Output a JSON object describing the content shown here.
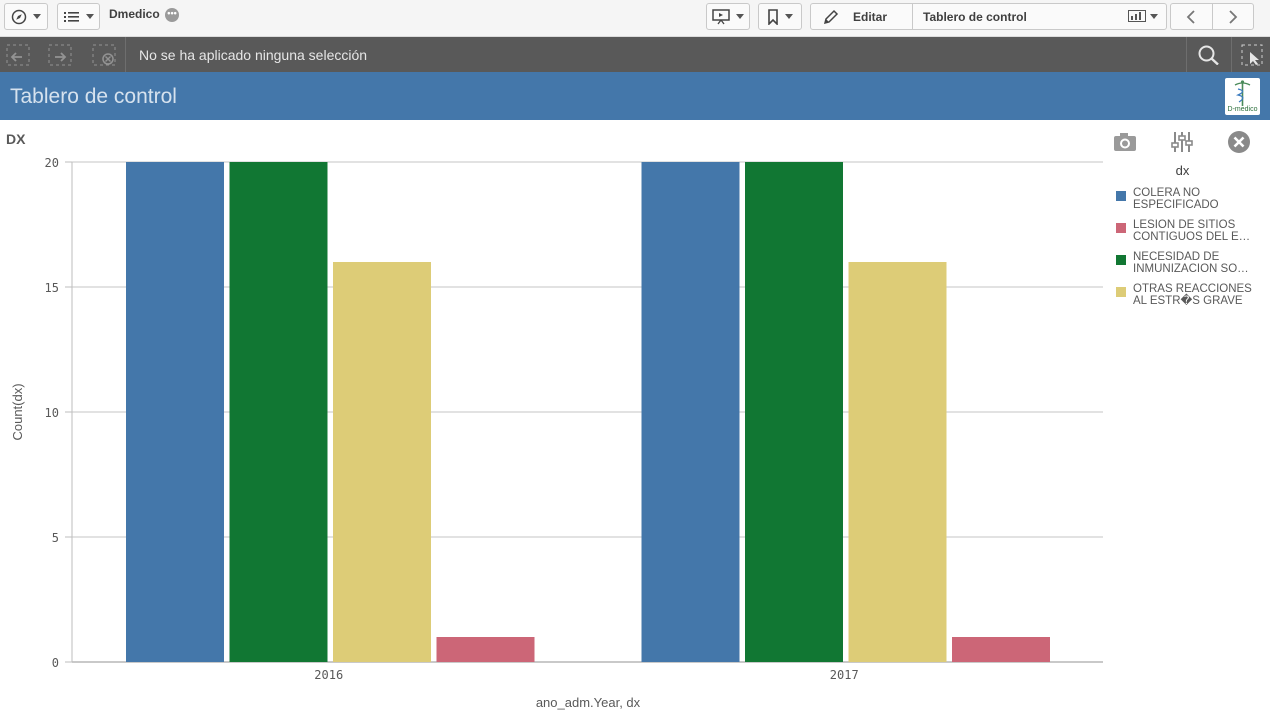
{
  "toolbar": {
    "app_name": "Dmedico",
    "edit_label": "Editar",
    "sheet_name": "Tablero de control"
  },
  "selection_bar": {
    "text": "No se ha aplicado ninguna selección"
  },
  "sheet": {
    "title": "Tablero de control",
    "logo_text": "D-medico"
  },
  "colors": {
    "header_blue": "#4477aa",
    "selbar_gray": "#595959"
  },
  "chart_data": {
    "type": "bar",
    "title": "DX",
    "xlabel": "ano_adm.Year, dx",
    "ylabel": "Count(dx)",
    "legend_title": "dx",
    "legend_position": "right",
    "ylim": [
      0,
      20
    ],
    "yticks": [
      0,
      5,
      10,
      15,
      20
    ],
    "grid": true,
    "categories": [
      "2016",
      "2017"
    ],
    "series": [
      {
        "name": "COLERA NO ESPECIFICADO",
        "color": "#4477aa",
        "values": [
          20,
          20
        ]
      },
      {
        "name": "LESION DE SITIOS CONTIGUOS DEL E…",
        "color": "#cc6677",
        "values": [
          1,
          1
        ]
      },
      {
        "name": "NECESIDAD DE INMUNIZACION SO…",
        "color": "#117733",
        "values": [
          20,
          20
        ]
      },
      {
        "name": "OTRAS REACCIONES AL ESTR�S GRAVE",
        "color": "#ddcc77",
        "values": [
          16,
          16
        ]
      }
    ],
    "bar_order": [
      0,
      2,
      3,
      1
    ]
  }
}
